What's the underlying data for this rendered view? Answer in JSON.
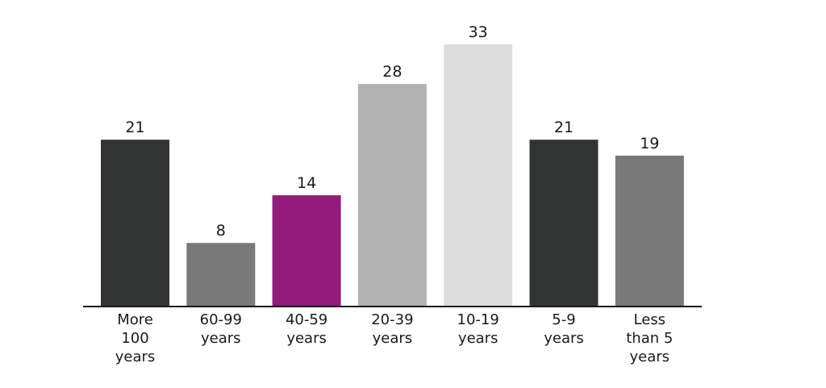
{
  "chart_data": {
    "type": "bar",
    "title": "",
    "xlabel": "",
    "ylabel": "",
    "grid": false,
    "legend": "none",
    "ylim": [
      0,
      33
    ],
    "categories": [
      [
        "More",
        "100",
        "years"
      ],
      [
        "60-99",
        "years"
      ],
      [
        "40-59",
        "years"
      ],
      [
        "20-39",
        "years"
      ],
      [
        "10-19",
        "years"
      ],
      [
        "5-9",
        "years"
      ],
      [
        "Less",
        "than 5",
        "years"
      ]
    ],
    "values": [
      21,
      8,
      14,
      28,
      33,
      21,
      19
    ],
    "colors": [
      "#323433",
      "#787978",
      "#921b7b",
      "#b1b1b1",
      "#dcdcdc",
      "#323433",
      "#787978"
    ],
    "axis_color": "#1a1a1a"
  }
}
